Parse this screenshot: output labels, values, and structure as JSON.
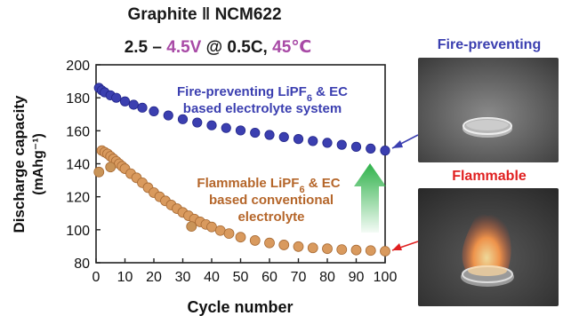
{
  "chart_data": {
    "type": "scatter",
    "title_line1": "Graphite ǁ NCM622",
    "title_line2": {
      "prefix": "2.5 – ",
      "voltage": "4.5V",
      "middle": " @ 0.5C, ",
      "temperature": "45℃"
    },
    "xlabel": "Cycle number",
    "ylabel_line1": "Discharge capacity",
    "ylabel_line2": "(mAhg⁻¹)",
    "xlim": [
      0,
      100
    ],
    "ylim": [
      80,
      200
    ],
    "x_ticks": [
      0,
      10,
      20,
      30,
      40,
      50,
      60,
      70,
      80,
      90,
      100
    ],
    "y_ticks": [
      80,
      100,
      120,
      140,
      160,
      180,
      200
    ],
    "series": [
      {
        "name": "Fire-preventing LiPF6 & EC based electrolyte system",
        "label_line1": "Fire-preventing LiPF",
        "label_sub": "6",
        "label_line1_suffix": " & EC",
        "label_line2": "based electrolyte system",
        "color": "#3b3fb0",
        "x": [
          1,
          2,
          3,
          5,
          7,
          10,
          13,
          16,
          20,
          25,
          30,
          35,
          40,
          45,
          50,
          55,
          60,
          65,
          70,
          75,
          80,
          85,
          90,
          95,
          100
        ],
        "y": [
          186,
          184.5,
          183.3,
          181.5,
          180,
          177.8,
          175.8,
          174,
          171.8,
          169.3,
          167,
          165,
          163.3,
          161.7,
          160.2,
          158.8,
          157.5,
          156.2,
          155,
          153.8,
          152.7,
          151.5,
          150.3,
          149.2,
          148
        ]
      },
      {
        "name": "Flammable LiPF6 & EC based conventional electrolyte",
        "label_line1": "Flammable LiPF",
        "label_sub": "6",
        "label_line1_suffix": " & EC",
        "label_line2": "based conventional",
        "label_line3": "electrolyte",
        "color": "#d99a5e",
        "x": [
          2,
          3,
          4,
          5,
          6,
          7,
          8,
          9,
          10,
          12,
          14,
          16,
          18,
          20,
          22,
          24,
          26,
          28,
          30,
          32,
          34,
          36,
          38,
          40,
          43,
          46,
          50,
          55,
          60,
          65,
          70,
          75,
          80,
          85,
          90,
          95,
          100
        ],
        "y": [
          148,
          147,
          146,
          144.5,
          143,
          141.5,
          140,
          138.5,
          137,
          134,
          131.5,
          128.5,
          125.5,
          122.5,
          120,
          117.5,
          115,
          112.8,
          110.5,
          108.5,
          106.5,
          104.8,
          103.2,
          101.7,
          99.5,
          97.7,
          95.5,
          93.5,
          92,
          90.8,
          89.8,
          89,
          88.5,
          88,
          87.7,
          87.4,
          87
        ]
      }
    ],
    "outliers": {
      "x": [
        1,
        5,
        33
      ],
      "y": [
        135,
        138,
        102
      ]
    }
  },
  "photos": {
    "top_label": "Fire-preventing",
    "top_label_color": "#3b3fb0",
    "bottom_label": "Flammable",
    "bottom_label_color": "#e02020"
  },
  "arrow_color": "#2fb24a"
}
